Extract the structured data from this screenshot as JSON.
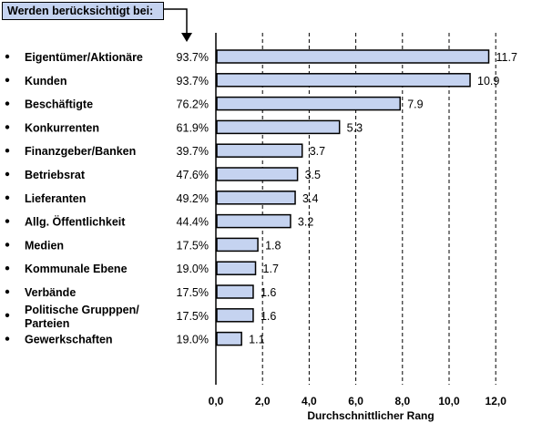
{
  "header_label": "Werden berücksichtigt bei:",
  "colors": {
    "bar_fill": "#c5d3f0",
    "bar_stroke": "#000000",
    "header_fill": "#c5d3f0"
  },
  "chart_data": {
    "type": "bar",
    "orientation": "horizontal",
    "categories": [
      [
        "Eigentümer/Aktionäre"
      ],
      [
        "Kunden"
      ],
      [
        "Beschäftigte"
      ],
      [
        "Konkurrenten"
      ],
      [
        "Finanzgeber/Banken"
      ],
      [
        "Betriebsrat"
      ],
      [
        "Lieferanten"
      ],
      [
        "Allg. Öffentlichkeit"
      ],
      [
        "Medien"
      ],
      [
        "Kommunale Ebene"
      ],
      [
        "Verbände"
      ],
      [
        "Politische Grupppen/",
        "Parteien"
      ],
      [
        "Gewerkschaften"
      ]
    ],
    "percentages": [
      "93.7%",
      "93.7%",
      "76.2%",
      "61.9%",
      "39.7%",
      "47.6%",
      "49.2%",
      "44.4%",
      "17.5%",
      "19.0%",
      "17.5%",
      "17.5%",
      "19.0%"
    ],
    "values": [
      11.7,
      10.9,
      7.9,
      5.3,
      3.7,
      3.5,
      3.4,
      3.2,
      1.8,
      1.7,
      1.6,
      1.6,
      1.1
    ],
    "value_labels": [
      "11.7",
      "10.9",
      "7.9",
      "5.3",
      "3.7",
      "3.5",
      "3.4",
      "3.2",
      "1.8",
      "1.7",
      "1.6",
      "1.6",
      "1.1"
    ],
    "xlabel": "Durchschnittlicher Rang",
    "xlim": [
      0,
      14
    ],
    "xticks": [
      0,
      2,
      4,
      6,
      8,
      10,
      12
    ],
    "xtick_labels": [
      "0,0",
      "2,0",
      "4,0",
      "6,0",
      "8,0",
      "10,0",
      "12,0"
    ],
    "grid": true,
    "grid_style": "dashed vertical"
  }
}
